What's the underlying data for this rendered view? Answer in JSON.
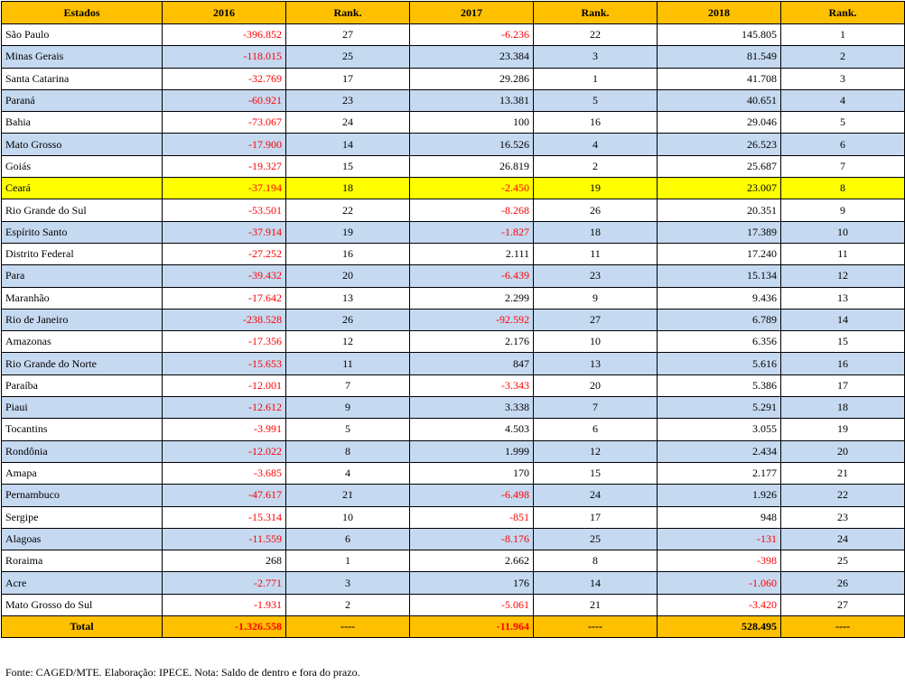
{
  "headers": [
    "Estados",
    "2016",
    "Rank.",
    "2017",
    "Rank.",
    "2018",
    "Rank."
  ],
  "rows": [
    {
      "state": "São Paulo",
      "v2016": "-396.852",
      "r2016": "27",
      "v2017": "-6.236",
      "r2017": "22",
      "v2018": "145.805",
      "r2018": "1"
    },
    {
      "state": "Minas Gerais",
      "v2016": "-118.015",
      "r2016": "25",
      "v2017": "23.384",
      "r2017": "3",
      "v2018": "81.549",
      "r2018": "2"
    },
    {
      "state": "Santa Catarina",
      "v2016": "-32.769",
      "r2016": "17",
      "v2017": "29.286",
      "r2017": "1",
      "v2018": "41.708",
      "r2018": "3"
    },
    {
      "state": "Paraná",
      "v2016": "-60.921",
      "r2016": "23",
      "v2017": "13.381",
      "r2017": "5",
      "v2018": "40.651",
      "r2018": "4"
    },
    {
      "state": "Bahia",
      "v2016": "-73.067",
      "r2016": "24",
      "v2017": "100",
      "r2017": "16",
      "v2018": "29.046",
      "r2018": "5"
    },
    {
      "state": "Mato Grosso",
      "v2016": "-17.900",
      "r2016": "14",
      "v2017": "16.526",
      "r2017": "4",
      "v2018": "26.523",
      "r2018": "6"
    },
    {
      "state": "Goiás",
      "v2016": "-19.327",
      "r2016": "15",
      "v2017": "26.819",
      "r2017": "2",
      "v2018": "25.687",
      "r2018": "7"
    },
    {
      "state": "Ceará",
      "v2016": "-37.194",
      "r2016": "18",
      "v2017": "-2.450",
      "r2017": "19",
      "v2018": "23.007",
      "r2018": "8"
    },
    {
      "state": "Rio Grande do Sul",
      "v2016": "-53.501",
      "r2016": "22",
      "v2017": "-8.268",
      "r2017": "26",
      "v2018": "20.351",
      "r2018": "9"
    },
    {
      "state": "Espírito Santo",
      "v2016": "-37.914",
      "r2016": "19",
      "v2017": "-1.827",
      "r2017": "18",
      "v2018": "17.389",
      "r2018": "10"
    },
    {
      "state": "Distrito Federal",
      "v2016": "-27.252",
      "r2016": "16",
      "v2017": "2.111",
      "r2017": "11",
      "v2018": "17.240",
      "r2018": "11"
    },
    {
      "state": "Para",
      "v2016": "-39.432",
      "r2016": "20",
      "v2017": "-6.439",
      "r2017": "23",
      "v2018": "15.134",
      "r2018": "12"
    },
    {
      "state": "Maranhão",
      "v2016": "-17.642",
      "r2016": "13",
      "v2017": "2.299",
      "r2017": "9",
      "v2018": "9.436",
      "r2018": "13"
    },
    {
      "state": "Rio de Janeiro",
      "v2016": "-238.528",
      "r2016": "26",
      "v2017": "-92.592",
      "r2017": "27",
      "v2018": "6.789",
      "r2018": "14"
    },
    {
      "state": "Amazonas",
      "v2016": "-17.356",
      "r2016": "12",
      "v2017": "2.176",
      "r2017": "10",
      "v2018": "6.356",
      "r2018": "15"
    },
    {
      "state": "Rio Grande do Norte",
      "v2016": "-15.653",
      "r2016": "11",
      "v2017": "847",
      "r2017": "13",
      "v2018": "5.616",
      "r2018": "16"
    },
    {
      "state": "Paraíba",
      "v2016": "-12.001",
      "r2016": "7",
      "v2017": "-3.343",
      "r2017": "20",
      "v2018": "5.386",
      "r2018": "17"
    },
    {
      "state": "Piaui",
      "v2016": "-12.612",
      "r2016": "9",
      "v2017": "3.338",
      "r2017": "7",
      "v2018": "5.291",
      "r2018": "18"
    },
    {
      "state": "Tocantins",
      "v2016": "-3.991",
      "r2016": "5",
      "v2017": "4.503",
      "r2017": "6",
      "v2018": "3.055",
      "r2018": "19"
    },
    {
      "state": "Rondônia",
      "v2016": "-12.022",
      "r2016": "8",
      "v2017": "1.999",
      "r2017": "12",
      "v2018": "2.434",
      "r2018": "20"
    },
    {
      "state": "Amapa",
      "v2016": "-3.685",
      "r2016": "4",
      "v2017": "170",
      "r2017": "15",
      "v2018": "2.177",
      "r2018": "21"
    },
    {
      "state": "Pernambuco",
      "v2016": "-47.617",
      "r2016": "21",
      "v2017": "-6.498",
      "r2017": "24",
      "v2018": "1.926",
      "r2018": "22"
    },
    {
      "state": "Sergipe",
      "v2016": "-15.314",
      "r2016": "10",
      "v2017": "-851",
      "r2017": "17",
      "v2018": "948",
      "r2018": "23"
    },
    {
      "state": "Alagoas",
      "v2016": "-11.559",
      "r2016": "6",
      "v2017": "-8.176",
      "r2017": "25",
      "v2018": "-131",
      "r2018": "24"
    },
    {
      "state": "Roraima",
      "v2016": "268",
      "r2016": "1",
      "v2017": "2.662",
      "r2017": "8",
      "v2018": "-398",
      "r2018": "25"
    },
    {
      "state": "Acre",
      "v2016": "-2.771",
      "r2016": "3",
      "v2017": "176",
      "r2017": "14",
      "v2018": "-1.060",
      "r2018": "26"
    },
    {
      "state": "Mato Grosso do Sul",
      "v2016": "-1.931",
      "r2016": "2",
      "v2017": "-5.061",
      "r2017": "21",
      "v2018": "-3.420",
      "r2018": "27"
    }
  ],
  "total": {
    "label": "Total",
    "v2016": "-1.326.558",
    "r2016": "----",
    "v2017": "-11.964",
    "r2017": "----",
    "v2018": "528.495",
    "r2018": "----"
  },
  "highlight_state": "Ceará",
  "colors": {
    "header": "#ffc000",
    "alt_row": "#c5d9f1",
    "highlight": "#ffff00",
    "negative": "#ff0000"
  },
  "footnote": "Fonte: CAGED/MTE. Elaboração: IPECE. Nota: Saldo de dentro e fora do prazo."
}
